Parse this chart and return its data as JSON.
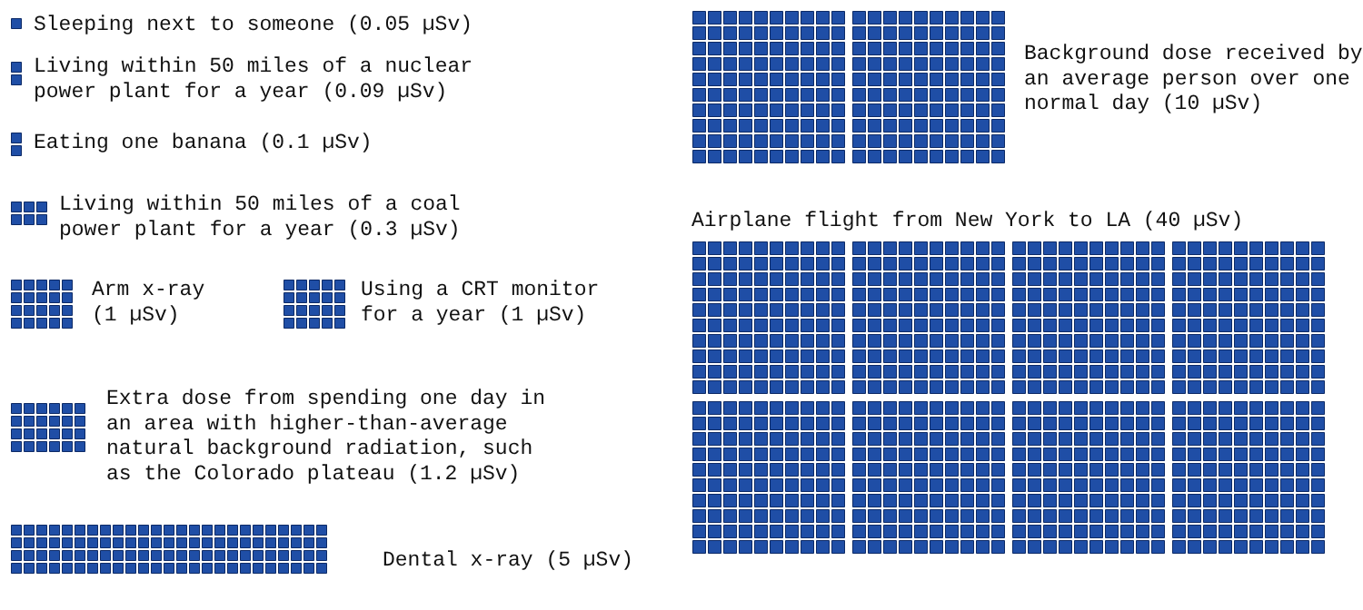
{
  "chart_data": {
    "type": "other",
    "color": "#1f4ea6",
    "categories": [
      "Sleeping next to someone",
      "Living within 50 miles of a nuclear power plant for a year",
      "Eating one banana",
      "Living within 50 miles of a coal power plant for a year",
      "Arm x-ray",
      "Using a CRT monitor for a year",
      "Extra dose from spending one day in an area with higher-than-average natural background radiation, such as the Colorado plateau",
      "Dental x-ray",
      "Background dose received by an average person over one normal day",
      "Airplane flight from New York to LA"
    ],
    "values": [
      0.05,
      0.09,
      0.1,
      0.3,
      1,
      1,
      1.2,
      5,
      10,
      40
    ],
    "value_labels": [
      "(0.05 µSv)",
      "(0.09 µSv)",
      "(0.1 µSv)",
      "(0.3 µSv)",
      "(1 µSv)",
      "(1 µSv)",
      "(1.2 µSv)",
      "(5 µSv)",
      "(10 µSv)",
      "(40 µSv)"
    ]
  }
}
